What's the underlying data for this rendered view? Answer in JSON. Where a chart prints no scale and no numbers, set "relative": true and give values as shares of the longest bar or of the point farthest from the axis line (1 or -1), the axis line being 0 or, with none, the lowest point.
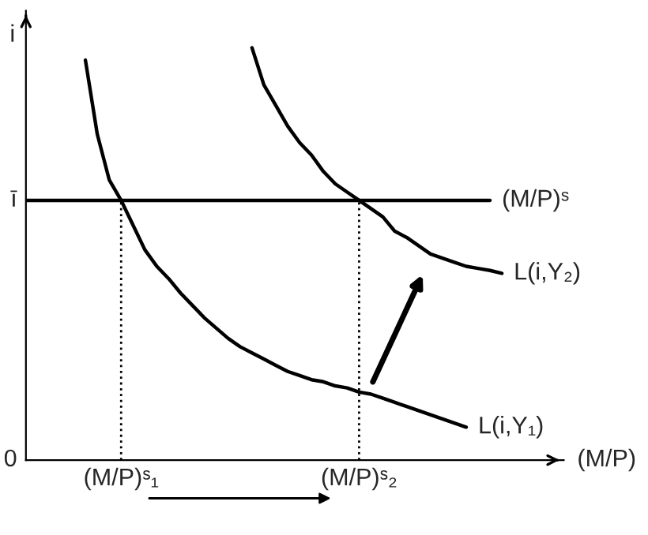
{
  "chart_data": {
    "type": "line",
    "relative": true,
    "ylabel": "i",
    "xlabel": "(M/P)",
    "categories": [
      null,
      null,
      null,
      null,
      null,
      null,
      null,
      null,
      "(M/P)ˢ₁",
      null,
      null,
      null,
      null,
      null,
      null,
      null,
      null,
      null,
      null,
      null,
      null,
      null,
      null,
      null,
      null,
      null,
      null,
      null,
      "(M/P)ˢ₂",
      null,
      null,
      null,
      null,
      null,
      null,
      null,
      null,
      null,
      null,
      null,
      null
    ],
    "annotations": [
      "0",
      "ī"
    ],
    "series": [
      {
        "name": "L(i,Y₁)",
        "color": "#000000",
        "values": [
          null,
          null,
          null,
          null,
          null,
          0.97,
          0.79,
          0.68,
          0.63,
          0.57,
          0.51,
          0.47,
          0.44,
          0.405,
          0.375,
          0.345,
          0.32,
          0.295,
          0.275,
          0.26,
          0.245,
          0.23,
          0.215,
          0.205,
          0.195,
          0.19,
          0.18,
          0.175,
          0.165,
          0.16,
          0.15,
          0.14,
          0.13,
          0.12,
          0.11,
          0.1,
          0.09,
          0.08,
          null,
          null,
          null
        ]
      },
      {
        "name": "L(i,Y₂)",
        "color": "#000000",
        "values": [
          null,
          null,
          null,
          null,
          null,
          null,
          null,
          null,
          null,
          null,
          null,
          null,
          null,
          null,
          null,
          null,
          null,
          null,
          null,
          1.0,
          0.91,
          0.86,
          0.81,
          0.77,
          0.74,
          0.7,
          0.67,
          0.65,
          0.63,
          0.61,
          0.59,
          0.555,
          0.54,
          0.52,
          0.5,
          0.49,
          0.48,
          0.47,
          0.465,
          0.46,
          0.453
        ]
      },
      {
        "name": "(M/P)ˢ",
        "color": "#000000",
        "values": [
          0.63,
          0.63,
          0.63,
          0.63,
          0.63,
          0.63,
          0.63,
          0.63,
          0.63,
          0.63,
          0.63,
          0.63,
          0.63,
          0.63,
          0.63,
          0.63,
          0.63,
          0.63,
          0.63,
          0.63,
          0.63,
          0.63,
          0.63,
          0.63,
          0.63,
          0.63,
          0.63,
          0.63,
          0.63,
          0.63,
          0.63,
          0.63,
          0.63,
          0.63,
          0.63,
          0.63,
          0.63,
          0.63,
          0.63,
          0.63,
          null
        ]
      }
    ],
    "ref_lines": [
      {
        "axis": "x",
        "value": "(M/P)ˢ₁",
        "line_style": "dotted",
        "color": "#000000"
      },
      {
        "axis": "x",
        "value": "(M/P)ˢ₂",
        "line_style": "dotted",
        "color": "#000000"
      }
    ],
    "grid": false
  }
}
